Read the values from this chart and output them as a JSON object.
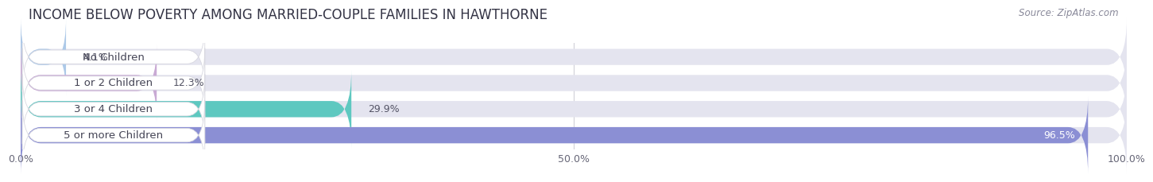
{
  "title": "INCOME BELOW POVERTY AMONG MARRIED-COUPLE FAMILIES IN HAWTHORNE",
  "source": "Source: ZipAtlas.com",
  "categories": [
    "No Children",
    "1 or 2 Children",
    "3 or 4 Children",
    "5 or more Children"
  ],
  "values": [
    4.1,
    12.3,
    29.9,
    96.5
  ],
  "bar_colors": [
    "#adc9e8",
    "#c9aad4",
    "#5ec8c0",
    "#8b8fd4"
  ],
  "background_bar_color": "#e4e4ef",
  "xlim": [
    0,
    100
  ],
  "xtick_labels": [
    "0.0%",
    "50.0%",
    "100.0%"
  ],
  "label_bg_color": "#ffffff",
  "title_fontsize": 12,
  "bar_height": 0.62,
  "label_fontsize": 9.5,
  "value_fontsize": 9
}
